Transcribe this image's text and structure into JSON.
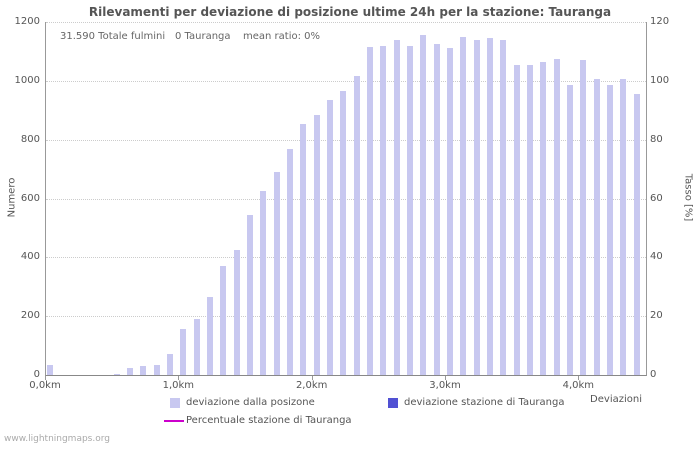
{
  "header": {
    "title": "Rilevamenti per deviazione di posizione ultime 24h per la stazione: Tauranga"
  },
  "annotations": {
    "total_lightning": "31.590 Totale fulmini",
    "station_count": "0 Tauranga",
    "mean_ratio": "mean ratio: 0%"
  },
  "legend": {
    "series1_label": "deviazione dalla posizone",
    "series2_label": "deviazione stazione di Tauranga",
    "series3_label": "Percentuale stazione di Tauranga"
  },
  "footer": {
    "watermark": "www.lightningmaps.org"
  },
  "colors": {
    "bar_light": "#c8c8f0",
    "bar_station": "#5151d3",
    "percent_line": "#cc00cc",
    "grid": "#cccccc",
    "axis": "#999999",
    "text": "#555555"
  },
  "chart_data": {
    "type": "bar",
    "title": "Rilevamenti per deviazione di posizione ultime 24h per la stazione: Tauranga",
    "xlabel": "Deviazioni",
    "ylabel_left": "Numero",
    "ylabel_right": "Tasso [%]",
    "ylim_left": [
      0,
      1200
    ],
    "ylim_right": [
      0,
      120
    ],
    "xlim_km": [
      0,
      4.5
    ],
    "bin_km": 0.1,
    "left_ticks": [
      0,
      200,
      400,
      600,
      800,
      1000,
      1200
    ],
    "right_ticks": [
      0,
      20,
      40,
      60,
      80,
      100,
      120
    ],
    "x_ticks": [
      {
        "km": 0.0,
        "label": "0,0km"
      },
      {
        "km": 1.0,
        "label": "1,0km"
      },
      {
        "km": 2.0,
        "label": "2,0km"
      },
      {
        "km": 3.0,
        "label": "3,0km"
      },
      {
        "km": 4.0,
        "label": "4,0km"
      }
    ],
    "x_km": [
      0.0,
      0.1,
      0.2,
      0.3,
      0.4,
      0.5,
      0.6,
      0.7,
      0.8,
      0.9,
      1.0,
      1.1,
      1.2,
      1.3,
      1.4,
      1.5,
      1.6,
      1.7,
      1.8,
      1.9,
      2.0,
      2.1,
      2.2,
      2.3,
      2.4,
      2.5,
      2.6,
      2.7,
      2.8,
      2.9,
      3.0,
      3.1,
      3.2,
      3.3,
      3.4,
      3.5,
      3.6,
      3.7,
      3.8,
      3.9,
      4.0,
      4.1,
      4.2,
      4.3,
      4.4
    ],
    "series": [
      {
        "name": "deviazione dalla posizone",
        "render": "bar",
        "axis": "left",
        "color": "#c8c8f0",
        "values": [
          35,
          0,
          0,
          0,
          0,
          3,
          25,
          30,
          35,
          70,
          155,
          190,
          265,
          370,
          425,
          545,
          625,
          690,
          770,
          855,
          885,
          935,
          965,
          1015,
          1115,
          1120,
          1140,
          1120,
          1155,
          1125,
          1110,
          1150,
          1140,
          1145,
          1140,
          1055,
          1055,
          1065,
          1075,
          985,
          1070,
          1005,
          985,
          1005,
          955
        ]
      },
      {
        "name": "deviazione stazione di Tauranga",
        "render": "bar",
        "axis": "left",
        "color": "#5151d3",
        "constant_value": 0
      },
      {
        "name": "Percentuale stazione di Tauranga",
        "render": "line",
        "axis": "right",
        "color": "#cc00cc",
        "constant_value": 0
      }
    ]
  }
}
